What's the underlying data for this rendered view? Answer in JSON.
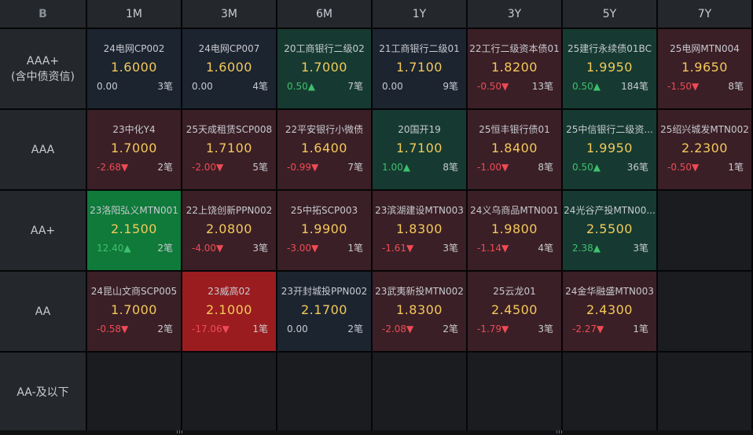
{
  "corner_logo": "B",
  "columns": [
    "1M",
    "3M",
    "6M",
    "1Y",
    "3Y",
    "5Y",
    "7Y"
  ],
  "rows": [
    {
      "label_lines": [
        "AAA+",
        "(含中债资信)"
      ],
      "cells": [
        {
          "name": "24电网CP002",
          "rate": "1.6000",
          "chg": "0.00",
          "dir": "zero",
          "count": "3笔",
          "tone": "neutral"
        },
        {
          "name": "24电网CP007",
          "rate": "1.6000",
          "chg": "0.00",
          "dir": "zero",
          "count": "4笔",
          "tone": "neutral"
        },
        {
          "name": "20工商银行二级02",
          "rate": "1.7000",
          "chg": "0.50▲",
          "dir": "up",
          "count": "7笔",
          "tone": "green"
        },
        {
          "name": "21工商银行二级01",
          "rate": "1.7100",
          "chg": "0.00",
          "dir": "zero",
          "count": "9笔",
          "tone": "neutral"
        },
        {
          "name": "22工行二级资本债01",
          "rate": "1.8200",
          "chg": "-0.50▼",
          "dir": "down",
          "count": "13笔",
          "tone": "red"
        },
        {
          "name": "25建行永续债01BC",
          "rate": "1.9950",
          "chg": "0.50▲",
          "dir": "up",
          "count": "184笔",
          "tone": "green"
        },
        {
          "name": "25电网MTN004",
          "rate": "1.9650",
          "chg": "-1.50▼",
          "dir": "down",
          "count": "8笔",
          "tone": "red"
        }
      ]
    },
    {
      "label_lines": [
        "AAA"
      ],
      "cells": [
        {
          "name": "23中化Y4",
          "rate": "1.7000",
          "chg": "-2.68▼",
          "dir": "down",
          "count": "2笔",
          "tone": "red"
        },
        {
          "name": "25天成租赁SCP008",
          "rate": "1.7100",
          "chg": "-2.00▼",
          "dir": "down",
          "count": "5笔",
          "tone": "red"
        },
        {
          "name": "22平安银行小微债",
          "rate": "1.6400",
          "chg": "-0.99▼",
          "dir": "down",
          "count": "7笔",
          "tone": "red"
        },
        {
          "name": "20国开19",
          "rate": "1.7100",
          "chg": "1.00▲",
          "dir": "up",
          "count": "8笔",
          "tone": "green"
        },
        {
          "name": "25恒丰银行债01",
          "rate": "1.8400",
          "chg": "-1.00▼",
          "dir": "down",
          "count": "8笔",
          "tone": "red"
        },
        {
          "name": "25中信银行二级资...",
          "rate": "1.9950",
          "chg": "0.50▲",
          "dir": "up",
          "count": "36笔",
          "tone": "green"
        },
        {
          "name": "25绍兴城发MTN002",
          "rate": "2.2300",
          "chg": "-0.50▼",
          "dir": "down",
          "count": "1笔",
          "tone": "red"
        }
      ]
    },
    {
      "label_lines": [
        "AA+"
      ],
      "cells": [
        {
          "name": "23洛阳弘义MTN001",
          "rate": "2.1500",
          "chg": "12.40▲",
          "dir": "up",
          "count": "2笔",
          "tone": "greenstrong"
        },
        {
          "name": "22上饶创新PPN002",
          "rate": "2.0800",
          "chg": "-4.00▼",
          "dir": "down",
          "count": "3笔",
          "tone": "red"
        },
        {
          "name": "25中拓SCP003",
          "rate": "1.9900",
          "chg": "-3.00▼",
          "dir": "down",
          "count": "1笔",
          "tone": "red"
        },
        {
          "name": "23滨湖建设MTN003",
          "rate": "1.8300",
          "chg": "-1.61▼",
          "dir": "down",
          "count": "3笔",
          "tone": "red"
        },
        {
          "name": "24义乌商品MTN001",
          "rate": "1.9800",
          "chg": "-1.14▼",
          "dir": "down",
          "count": "4笔",
          "tone": "red"
        },
        {
          "name": "24光谷产投MTN00...",
          "rate": "2.5500",
          "chg": "2.38▲",
          "dir": "up",
          "count": "3笔",
          "tone": "green"
        },
        {
          "empty": true
        }
      ]
    },
    {
      "label_lines": [
        "AA"
      ],
      "cells": [
        {
          "name": "24昆山文商SCP005",
          "rate": "1.7000",
          "chg": "-0.58▼",
          "dir": "down",
          "count": "2笔",
          "tone": "red"
        },
        {
          "name": "23威高02",
          "rate": "2.1000",
          "chg": "-17.06▼",
          "dir": "down",
          "count": "1笔",
          "tone": "redstrong"
        },
        {
          "name": "23开封城投PPN002",
          "rate": "2.1700",
          "chg": "0.00",
          "dir": "zero",
          "count": "2笔",
          "tone": "neutral"
        },
        {
          "name": "23武夷新投MTN002",
          "rate": "1.8300",
          "chg": "-2.08▼",
          "dir": "down",
          "count": "2笔",
          "tone": "red"
        },
        {
          "name": "25云龙01",
          "rate": "2.4500",
          "chg": "-1.79▼",
          "dir": "down",
          "count": "3笔",
          "tone": "red"
        },
        {
          "name": "24金华融盛MTN003",
          "rate": "2.4300",
          "chg": "-2.27▼",
          "dir": "down",
          "count": "1笔",
          "tone": "red"
        },
        {
          "empty": true
        }
      ]
    },
    {
      "label_lines": [
        "AA-及以下"
      ],
      "cells": [
        {
          "empty": true
        },
        {
          "empty": true
        },
        {
          "empty": true
        },
        {
          "empty": true
        },
        {
          "empty": true
        },
        {
          "empty": true
        },
        {
          "empty": true
        }
      ]
    }
  ]
}
